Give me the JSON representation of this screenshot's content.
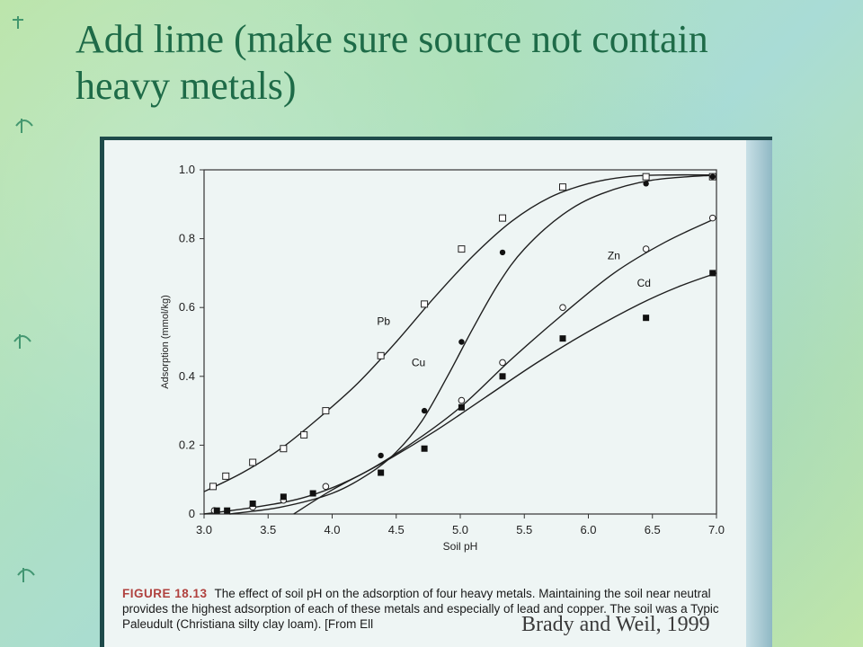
{
  "slide": {
    "title": "Add lime (make sure source not contain heavy metals)",
    "credit": "Brady and Weil, 1999"
  },
  "caption": {
    "label": "FIGURE 18.13",
    "text": "The effect of soil pH on the adsorption of four heavy metals. Maintaining the soil near neutral provides the highest adsorption of each of these metals and especially of lead and copper. The soil was a Typic Paleudult (Christiana silty clay loam). [From Ell"
  },
  "chart_data": {
    "type": "scatter",
    "xlabel": "Soil pH",
    "ylabel": "Adsorption (mmol/kg)",
    "xlim": [
      3.0,
      7.0
    ],
    "ylim": [
      0,
      1.0
    ],
    "x_ticks": [
      "3.0",
      "3.5",
      "4.0",
      "4.5",
      "5.0",
      "5.5",
      "6.0",
      "6.5",
      "7.0"
    ],
    "y_ticks": [
      "0",
      "0.2",
      "0.4",
      "0.6",
      "0.8",
      "1.0"
    ],
    "grid": false,
    "series": [
      {
        "name": "Pb",
        "marker": "open-square",
        "points": [
          [
            3.07,
            0.08
          ],
          [
            3.17,
            0.11
          ],
          [
            3.38,
            0.15
          ],
          [
            3.62,
            0.19
          ],
          [
            3.78,
            0.23
          ],
          [
            3.95,
            0.3
          ],
          [
            4.38,
            0.46
          ],
          [
            4.72,
            0.61
          ],
          [
            5.01,
            0.77
          ],
          [
            5.33,
            0.86
          ],
          [
            5.8,
            0.95
          ],
          [
            6.45,
            0.98
          ],
          [
            6.97,
            0.98
          ]
        ],
        "curve": [
          [
            3.0,
            0.065
          ],
          [
            3.3,
            0.12
          ],
          [
            3.6,
            0.19
          ],
          [
            3.9,
            0.28
          ],
          [
            4.2,
            0.38
          ],
          [
            4.5,
            0.5
          ],
          [
            4.8,
            0.63
          ],
          [
            5.1,
            0.75
          ],
          [
            5.4,
            0.85
          ],
          [
            5.7,
            0.92
          ],
          [
            6.0,
            0.96
          ],
          [
            6.3,
            0.98
          ],
          [
            6.6,
            0.985
          ],
          [
            7.0,
            0.985
          ]
        ]
      },
      {
        "name": "Cu",
        "marker": "filled-circle",
        "points": [
          [
            3.1,
            0.01
          ],
          [
            3.38,
            0.02
          ],
          [
            3.62,
            0.04
          ],
          [
            3.85,
            0.06
          ],
          [
            4.38,
            0.17
          ],
          [
            4.72,
            0.3
          ],
          [
            5.01,
            0.5
          ],
          [
            5.33,
            0.76
          ],
          [
            6.45,
            0.96
          ],
          [
            6.97,
            0.98
          ]
        ],
        "curve": [
          [
            3.2,
            0.0
          ],
          [
            3.6,
            0.02
          ],
          [
            4.0,
            0.06
          ],
          [
            4.3,
            0.12
          ],
          [
            4.5,
            0.18
          ],
          [
            4.7,
            0.27
          ],
          [
            4.9,
            0.4
          ],
          [
            5.1,
            0.54
          ],
          [
            5.3,
            0.67
          ],
          [
            5.5,
            0.77
          ],
          [
            5.8,
            0.87
          ],
          [
            6.1,
            0.93
          ],
          [
            6.5,
            0.97
          ],
          [
            7.0,
            0.985
          ]
        ]
      },
      {
        "name": "Zn",
        "marker": "open-circle",
        "points": [
          [
            3.08,
            0.01
          ],
          [
            3.38,
            0.02
          ],
          [
            3.62,
            0.04
          ],
          [
            3.95,
            0.08
          ],
          [
            5.01,
            0.33
          ],
          [
            5.33,
            0.44
          ],
          [
            5.8,
            0.6
          ],
          [
            6.45,
            0.77
          ],
          [
            6.97,
            0.86
          ]
        ],
        "curve": [
          [
            3.0,
            0.0
          ],
          [
            3.4,
            0.02
          ],
          [
            3.8,
            0.05
          ],
          [
            4.2,
            0.11
          ],
          [
            4.6,
            0.2
          ],
          [
            5.0,
            0.31
          ],
          [
            5.4,
            0.45
          ],
          [
            5.8,
            0.58
          ],
          [
            6.2,
            0.7
          ],
          [
            6.6,
            0.79
          ],
          [
            7.0,
            0.86
          ]
        ]
      },
      {
        "name": "Cd",
        "marker": "filled-square",
        "points": [
          [
            3.1,
            0.01
          ],
          [
            3.18,
            0.01
          ],
          [
            3.38,
            0.03
          ],
          [
            3.62,
            0.05
          ],
          [
            3.85,
            0.06
          ],
          [
            4.38,
            0.12
          ],
          [
            4.72,
            0.19
          ],
          [
            5.01,
            0.31
          ],
          [
            5.33,
            0.4
          ],
          [
            5.8,
            0.51
          ],
          [
            6.45,
            0.57
          ],
          [
            6.97,
            0.7
          ]
        ],
        "curve": [
          [
            3.7,
            0.0
          ],
          [
            4.0,
            0.07
          ],
          [
            4.4,
            0.15
          ],
          [
            4.8,
            0.24
          ],
          [
            5.2,
            0.34
          ],
          [
            5.6,
            0.44
          ],
          [
            6.0,
            0.53
          ],
          [
            6.4,
            0.61
          ],
          [
            6.7,
            0.66
          ],
          [
            7.0,
            0.7
          ]
        ]
      }
    ],
    "annotations": [
      "Pb",
      "Cu",
      "Zn",
      "Cd"
    ]
  }
}
